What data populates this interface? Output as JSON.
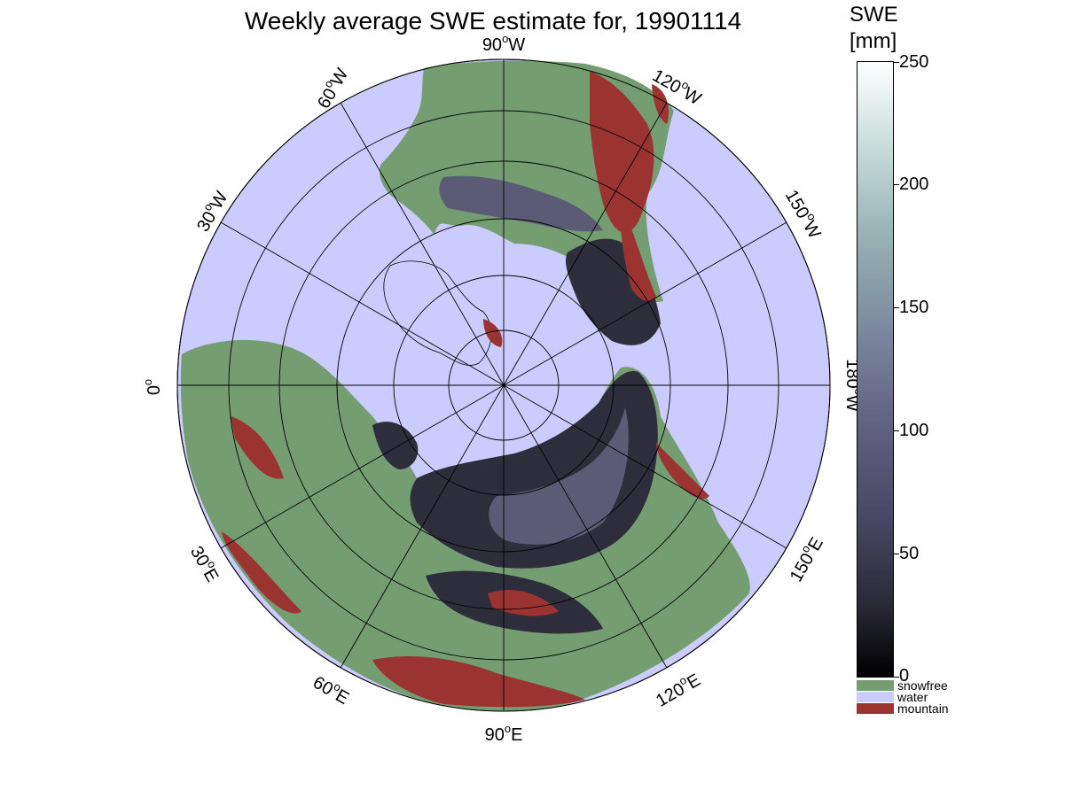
{
  "title": "Weekly average SWE estimate for, 19901114",
  "colorbar": {
    "title_line1": "SWE",
    "title_line2": "[mm]",
    "range": [
      0,
      250
    ],
    "ticks": [
      "0",
      "50",
      "100",
      "150",
      "200",
      "250"
    ],
    "gradient_colors": [
      "#000000",
      "#474662",
      "#79849c",
      "#98b3b4",
      "#ffffff"
    ]
  },
  "categories": [
    {
      "label": "snowfree",
      "color": "#749e72"
    },
    {
      "label": "water",
      "color": "#cccbfd"
    },
    {
      "label": "mountain",
      "color": "#9b3431"
    }
  ],
  "map": {
    "projection": "polar-stereographic-north",
    "colors": {
      "water": "#cccbfd",
      "snowfree": "#749e72",
      "mountain": "#9b3431",
      "snow_dark": "#2e2d3c",
      "snow_mid": "#5c5b76"
    },
    "longitude_labels": {
      "lon_90w": {
        "deg": "90",
        "dir": "W"
      },
      "lon_60w": {
        "deg": "60",
        "dir": "W"
      },
      "lon_120w": {
        "deg": "120",
        "dir": "W"
      },
      "lon_30w": {
        "deg": "30",
        "dir": "W"
      },
      "lon_150w": {
        "deg": "150",
        "dir": "W"
      },
      "lon_0": {
        "deg": "0",
        "dir": ""
      },
      "lon_180w": {
        "deg": "180",
        "dir": "W"
      },
      "lon_30e": {
        "deg": "30",
        "dir": "E"
      },
      "lon_150e": {
        "deg": "150",
        "dir": "E"
      },
      "lon_60e": {
        "deg": "60",
        "dir": "E"
      },
      "lon_120e": {
        "deg": "120",
        "dir": "E"
      },
      "lon_90e": {
        "deg": "90",
        "dir": "E"
      }
    }
  }
}
